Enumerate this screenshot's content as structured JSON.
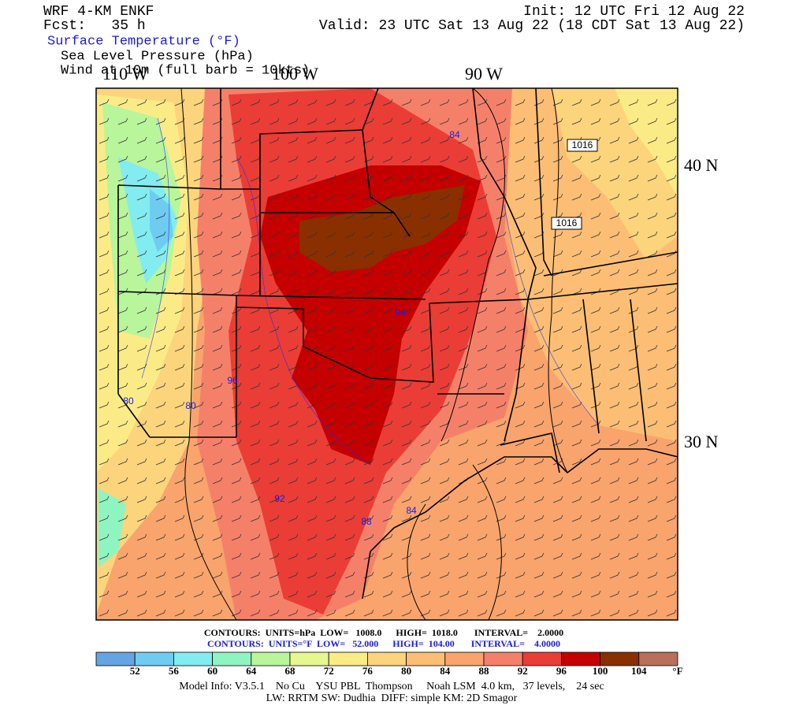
{
  "header": {
    "left": [
      "WRF 4-KM ENKF",
      "Fcst:   35 h"
    ],
    "right": [
      "Init: 12 UTC Fri 12 Aug 22",
      "Valid: 23 UTC Sat 13 Aug 22 (18 CDT Sat 13 Aug 22)"
    ]
  },
  "fields": [
    "Surface Temperature (°F)",
    "Sea Level Pressure (hPa)",
    "Wind at 10m (full barb = 10kts)"
  ],
  "map": {
    "longitudes": [
      "110 W",
      "100 W",
      "90 W"
    ],
    "latitudes": [
      "40 N",
      "30 N"
    ],
    "pressure_labels": [
      "1016",
      "1016"
    ],
    "temperature_labels": [
      "84",
      "96",
      "96",
      "92",
      "88",
      "84",
      "80",
      "80"
    ]
  },
  "contours": [
    "CONTOURS:  UNITS=hPa  LOW=   1008.0      HIGH=  1018.0       INTERVAL=    2.0000",
    "CONTOURS:  UNITS=°F  LOW=   52.000      HIGH=  104.00       INTERVAL=    4.0000"
  ],
  "colorbar": {
    "colors": [
      "#65a4e2",
      "#6fccf1",
      "#82ecf0",
      "#8ff5c0",
      "#b8f59b",
      "#e6f78f",
      "#fbeb86",
      "#fbd47c",
      "#fbbe74",
      "#f8a46c",
      "#f5806a",
      "#ea3d36",
      "#c40000",
      "#8a2f00",
      "#b8705a"
    ],
    "labels": [
      52,
      56,
      60,
      64,
      68,
      72,
      76,
      80,
      84,
      88,
      92,
      96,
      100,
      104
    ],
    "unit": "°F"
  },
  "footer": [
    "Model Info: V3.5.1    No Cu    YSU PBL  Thompson     Noah LSM  4.0 km,   37 levels,    24 sec",
    "LW: RRTM SW: Dudhia  DIFF: simple KM: 2D Smagor"
  ]
}
